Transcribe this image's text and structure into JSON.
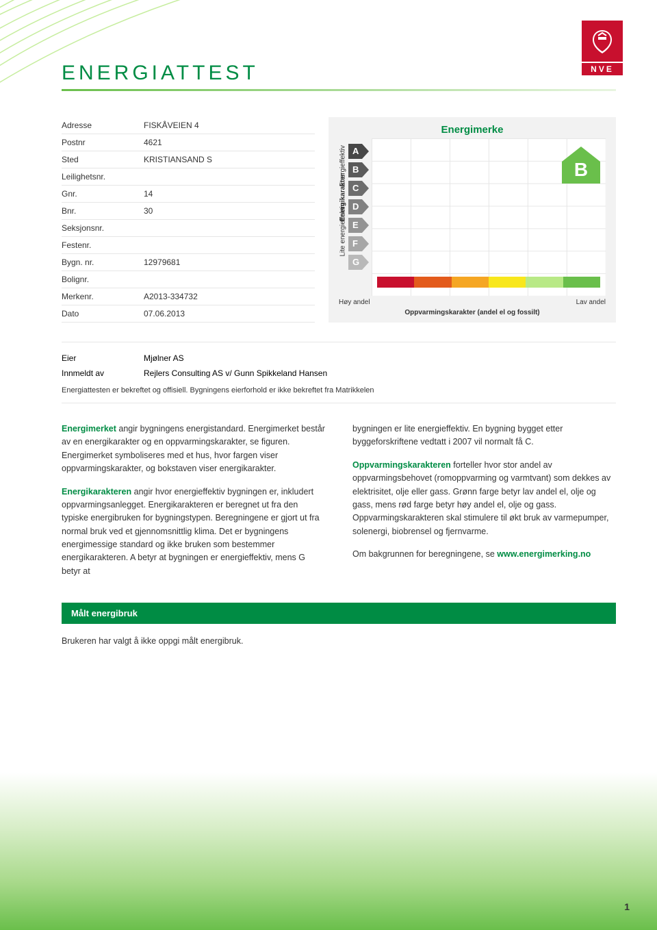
{
  "colors": {
    "brand_green": "#008c44",
    "nve_red": "#c8102e",
    "rule_gradient_from": "#6abf4b",
    "rule_gradient_to": "#e8f5e0"
  },
  "logo": {
    "text": "NVE"
  },
  "doc_title": "ENERGIATTEST",
  "properties": [
    {
      "k": "Adresse",
      "v": "FISKÅVEIEN 4"
    },
    {
      "k": "Postnr",
      "v": "4621"
    },
    {
      "k": "Sted",
      "v": "KRISTIANSAND S"
    },
    {
      "k": "Leilighetsnr.",
      "v": ""
    },
    {
      "k": "Gnr.",
      "v": "14"
    },
    {
      "k": "Bnr.",
      "v": "30"
    },
    {
      "k": "Seksjonsnr.",
      "v": ""
    },
    {
      "k": "Festenr.",
      "v": ""
    },
    {
      "k": "Bygn. nr.",
      "v": "12979681"
    },
    {
      "k": "Bolignr.",
      "v": ""
    },
    {
      "k": "Merkenr.",
      "v": "A2013-334732"
    },
    {
      "k": "Dato",
      "v": "07.06.2013"
    }
  ],
  "chart": {
    "title": "Energimerke",
    "y_axis": {
      "upper_label": "Energieffektiv",
      "middle_label": "Energikarakter",
      "lower_label": "Lite energieffektiv"
    },
    "grades": [
      {
        "letter": "A",
        "color": "#474747"
      },
      {
        "letter": "B",
        "color": "#5a5a5a"
      },
      {
        "letter": "C",
        "color": "#6d6d6d"
      },
      {
        "letter": "D",
        "color": "#808080"
      },
      {
        "letter": "E",
        "color": "#939393"
      },
      {
        "letter": "F",
        "color": "#a6a6a6"
      },
      {
        "letter": "G",
        "color": "#b9b9b9"
      }
    ],
    "result_grade": "B",
    "house_color": "#6abf4b",
    "color_bar": [
      "#c8102e",
      "#e35b1c",
      "#f5a623",
      "#f8e71c",
      "#b8e986",
      "#6abf4b"
    ],
    "x_left": "Høy andel",
    "x_right": "Lav andel",
    "x_caption": "Oppvarmingskarakter (andel el og fossilt)"
  },
  "owner": {
    "rows": [
      {
        "k": "Eier",
        "v": "Mjølner AS"
      },
      {
        "k": "Innmeldt av",
        "v": "Rejlers Consulting AS v/ Gunn Spikkeland Hansen"
      }
    ],
    "note": "Energiattesten er bekreftet og offisiell. Bygningens eierforhold er ikke bekreftet fra Matrikkelen"
  },
  "body": {
    "left": {
      "p1_lead": "Energimerket",
      "p1_rest": " angir bygningens energistandard. Energimerket består av en energikarakter og en oppvarmingskarakter, se figuren. Energimerket symboliseres med et hus, hvor fargen viser oppvarmingskarakter, og bokstaven viser energikarakter.",
      "p2_lead": "Energikarakteren",
      "p2_rest": " angir hvor energieffektiv bygningen er, inkludert oppvarmingsanlegget. Energikarakteren er beregnet ut fra den typiske energibruken for bygningstypen. Beregningene er gjort ut fra normal bruk ved et gjennomsnittlig klima. Det er bygningens energimessige standard og ikke bruken som bestemmer energikarakteren. A betyr at bygningen er energieffektiv, mens G betyr at"
    },
    "right": {
      "p1": "bygningen er lite energieffektiv. En bygning bygget etter byggeforskriftene vedtatt i 2007 vil normalt få C.",
      "p2_lead": "Oppvarmingskarakteren",
      "p2_rest": " forteller hvor stor andel av oppvarmingsbehovet (romoppvarming og varmtvant) som dekkes av elektrisitet, olje eller gass. Grønn farge betyr lav andel el, olje og gass, mens rød farge betyr høy andel el, olje og gass. Oppvarmingskarakteren skal stimulere til økt bruk av varmepumper, solenergi, biobrensel og fjernvarme.",
      "p3_text": "Om bakgrunnen for beregningene, se ",
      "p3_link": "www.energimerking.no"
    }
  },
  "section": {
    "bar": "Målt energibruk",
    "text": "Brukeren har valgt å ikke oppgi målt energibruk."
  },
  "page_number": "1"
}
